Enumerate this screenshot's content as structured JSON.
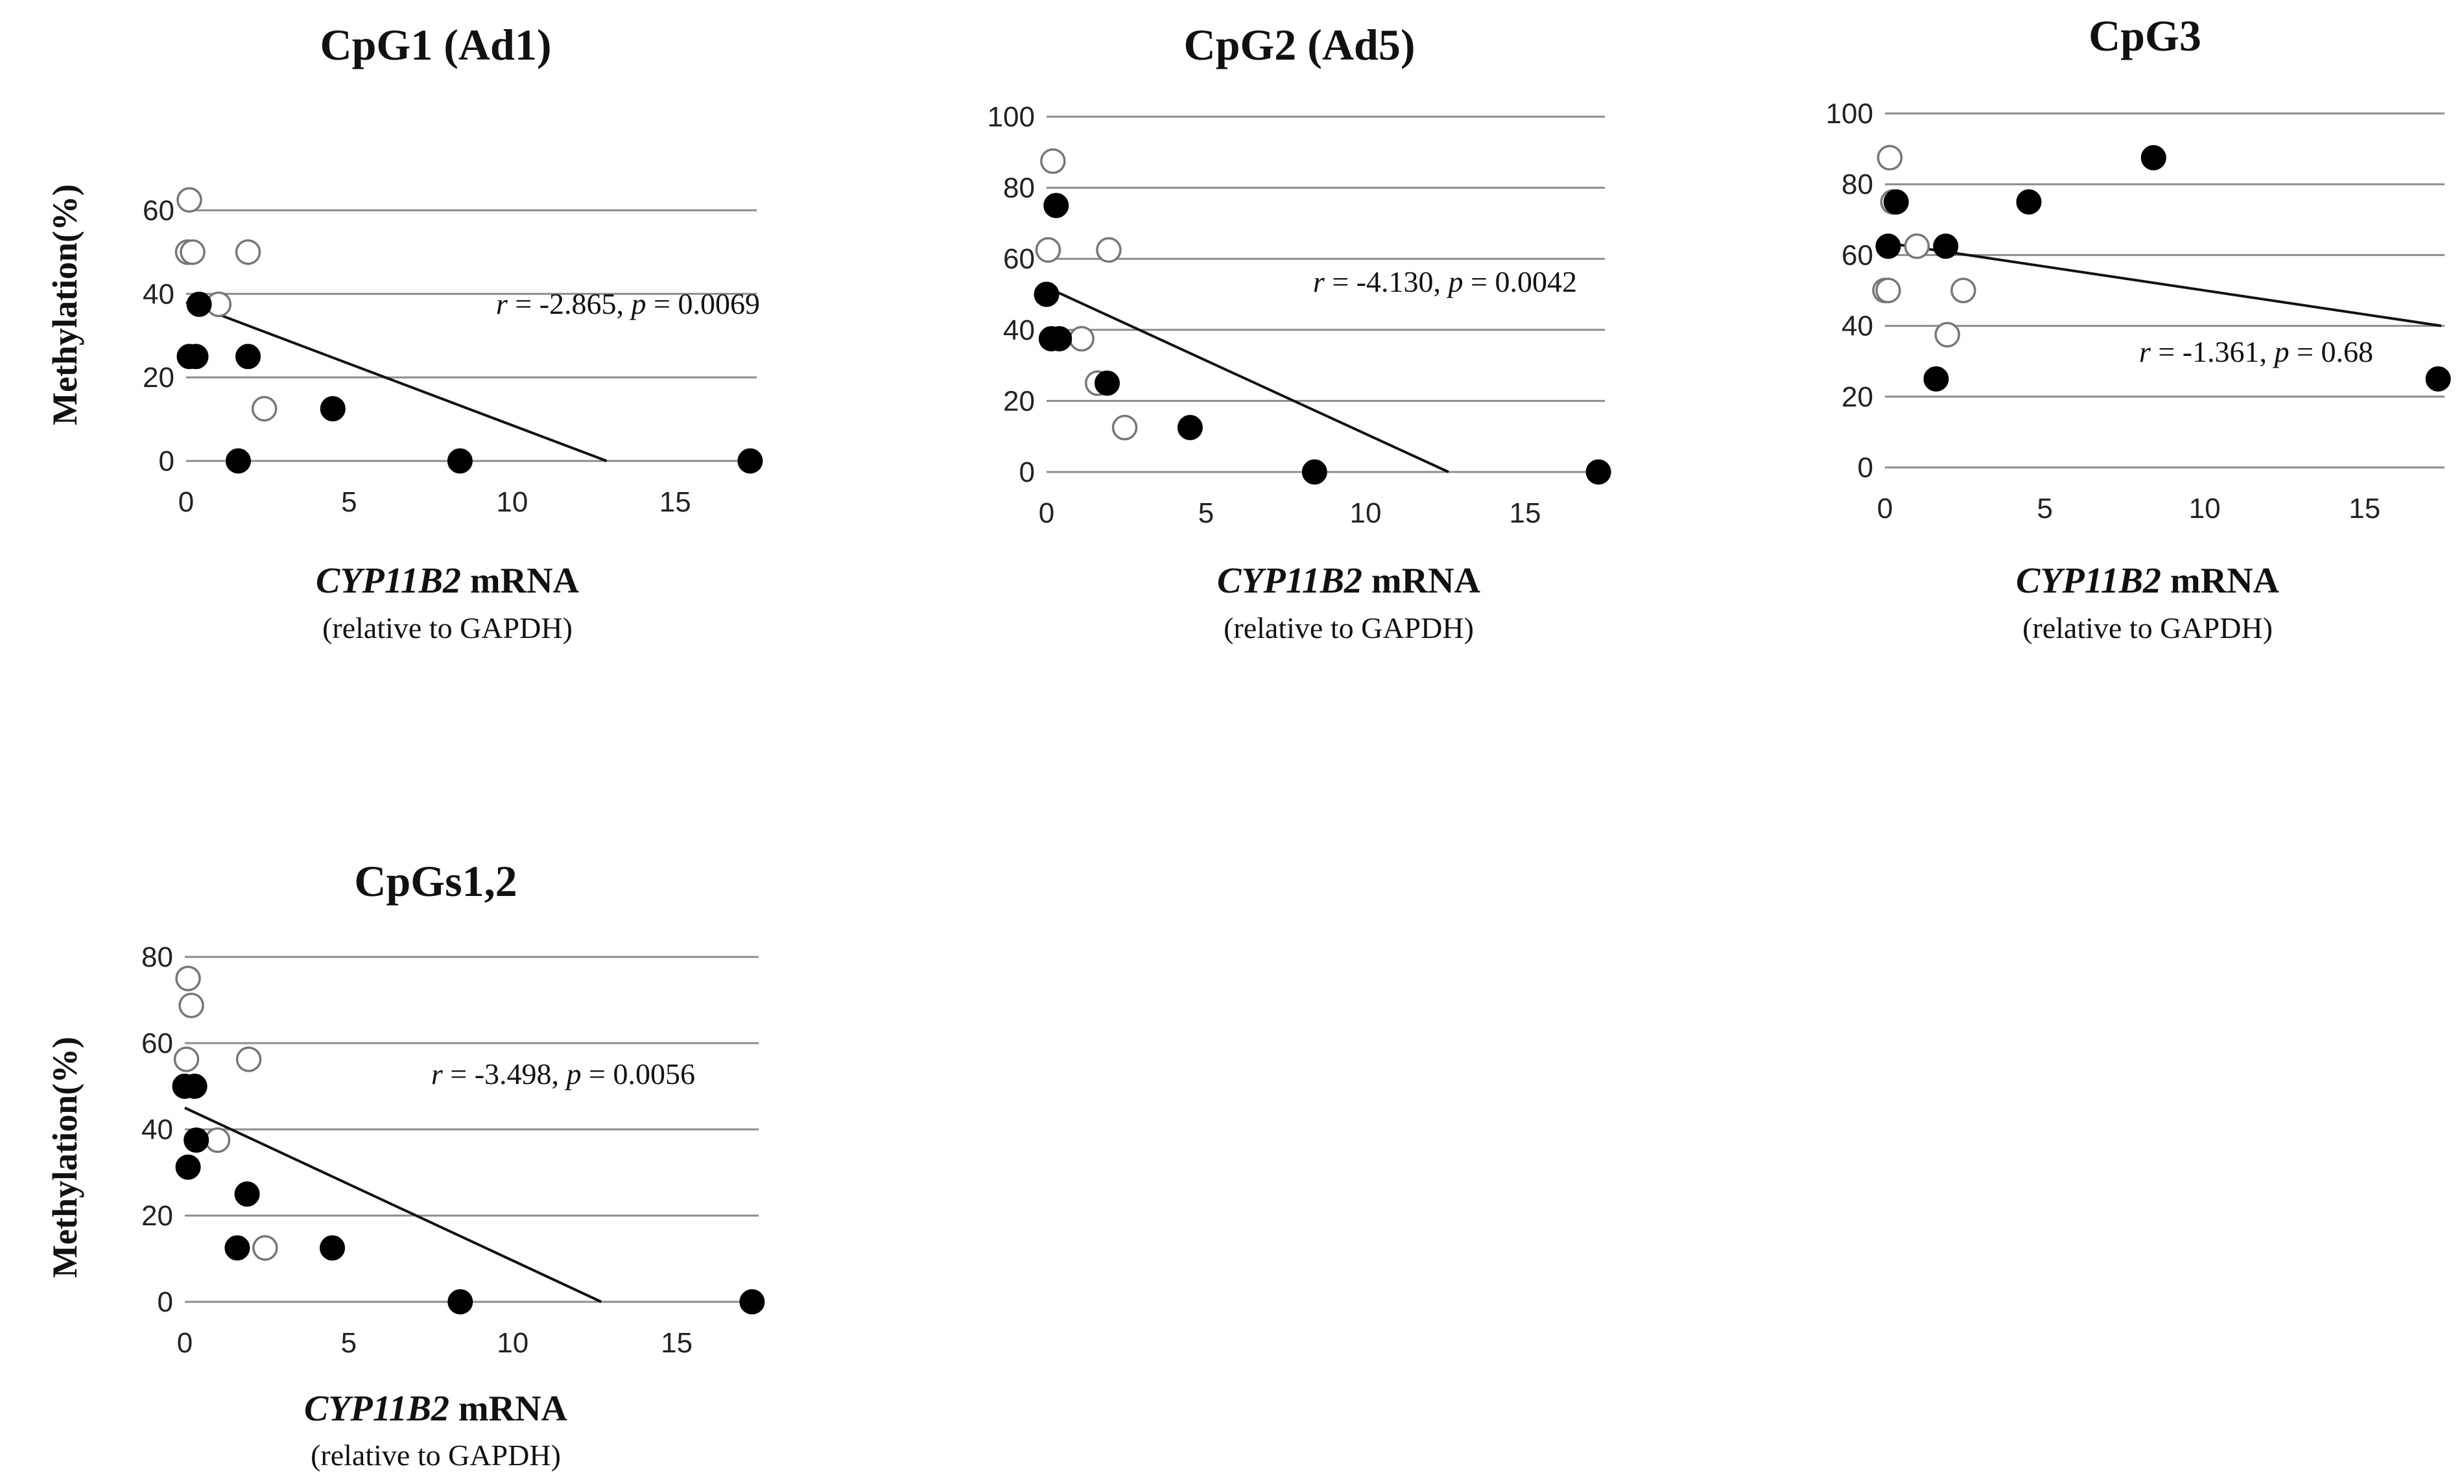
{
  "colors": {
    "filled_marker": "#000000",
    "open_marker": "#ffffff",
    "open_marker_edge": "#777777",
    "gridline": "#8c8c8c",
    "regression_line": "#111111"
  },
  "chart_data": [
    {
      "type": "scatter",
      "title": "CpG1 (Ad1)",
      "ylabel": "Methylation(%)",
      "xlabel_italic": "CYP11B2",
      "xlabel_rest": " mRNA",
      "xlabel_sub": "(relative to GAPDH)",
      "stat": {
        "r_label": "r",
        "r_text": " = -2.865, ",
        "p_label": "p",
        "p_text": " = 0.0069"
      },
      "grid": true,
      "xlim": [
        0,
        17.5
      ],
      "ylim": [
        0,
        70
      ],
      "xticks": [
        0,
        5,
        10,
        15
      ],
      "yticks": [
        0,
        20,
        40,
        60
      ],
      "fit_line": {
        "x": [
          0,
          12.9
        ],
        "y": [
          38,
          0
        ]
      },
      "series": [
        {
          "marker": "filled",
          "points": [
            [
              0.1,
              25
            ],
            [
              0.3,
              25
            ],
            [
              0.4,
              37.5
            ],
            [
              1.6,
              0
            ],
            [
              1.9,
              25
            ],
            [
              4.5,
              12.5
            ],
            [
              8.4,
              0
            ],
            [
              17.3,
              0
            ]
          ]
        },
        {
          "marker": "open",
          "points": [
            [
              0.05,
              50
            ],
            [
              0.1,
              62.5
            ],
            [
              0.2,
              50
            ],
            [
              1.0,
              37.5
            ],
            [
              1.9,
              50
            ],
            [
              2.4,
              12.5
            ]
          ]
        }
      ]
    },
    {
      "type": "scatter",
      "title": "CpG2 (Ad5)",
      "ylabel": "",
      "xlabel_italic": "CYP11B2",
      "xlabel_rest": " mRNA",
      "xlabel_sub": "(relative to GAPDH)",
      "stat": {
        "r_label": "r",
        "r_text": " = -4.130, ",
        "p_label": "p",
        "p_text": " = 0.0042"
      },
      "grid": true,
      "xlim": [
        0,
        17.5
      ],
      "ylim": [
        0,
        100
      ],
      "xticks": [
        0,
        5,
        10,
        15
      ],
      "yticks": [
        0,
        20,
        40,
        60,
        80,
        100
      ],
      "fit_line": {
        "x": [
          0,
          12.6
        ],
        "y": [
          52,
          0
        ]
      },
      "series": [
        {
          "marker": "filled",
          "points": [
            [
              0.0,
              50
            ],
            [
              0.15,
              37.5
            ],
            [
              0.3,
              75
            ],
            [
              0.4,
              37.5
            ],
            [
              1.9,
              25
            ],
            [
              4.5,
              12.5
            ],
            [
              8.4,
              0
            ],
            [
              17.3,
              0
            ]
          ]
        },
        {
          "marker": "open",
          "points": [
            [
              0.05,
              62.5
            ],
            [
              0.2,
              87.5
            ],
            [
              1.1,
              37.5
            ],
            [
              1.6,
              25
            ],
            [
              1.95,
              62.5
            ],
            [
              2.45,
              12.5
            ]
          ]
        }
      ]
    },
    {
      "type": "scatter",
      "title": "CpG3",
      "ylabel": "",
      "xlabel_italic": "CYP11B2",
      "xlabel_rest": " mRNA",
      "xlabel_sub": "(relative to GAPDH)",
      "stat": {
        "r_label": "r",
        "r_text": " = -1.361, ",
        "p_label": "p",
        "p_text": " = 0.68"
      },
      "grid": true,
      "xlim": [
        0,
        17.5
      ],
      "ylim": [
        0,
        100
      ],
      "xticks": [
        0,
        5,
        10,
        15
      ],
      "yticks": [
        0,
        20,
        40,
        60,
        80,
        100
      ],
      "fit_line": {
        "x": [
          0,
          17.4
        ],
        "y": [
          63.5,
          40
        ]
      },
      "series": [
        {
          "marker": "filled",
          "points": [
            [
              0.1,
              62.5
            ],
            [
              0.35,
              75
            ],
            [
              1.6,
              25
            ],
            [
              1.9,
              62.5
            ],
            [
              4.5,
              75
            ],
            [
              8.4,
              87.5
            ],
            [
              17.3,
              25
            ]
          ]
        },
        {
          "marker": "open",
          "points": [
            [
              0.0,
              50
            ],
            [
              0.1,
              50
            ],
            [
              0.15,
              87.5
            ],
            [
              0.25,
              75
            ],
            [
              1.0,
              62.5
            ],
            [
              1.95,
              37.5
            ],
            [
              2.45,
              50
            ]
          ]
        }
      ]
    },
    {
      "type": "scatter",
      "title": "CpGs1,2",
      "ylabel": "Methylation(%)",
      "xlabel_italic": "CYP11B2",
      "xlabel_rest": " mRNA",
      "xlabel_sub": "(relative to GAPDH)",
      "stat": {
        "r_label": "r",
        "r_text": " = -3.498, ",
        "p_label": "p",
        "p_text": " = 0.0056"
      },
      "grid": true,
      "xlim": [
        0,
        17.5
      ],
      "ylim": [
        0,
        80
      ],
      "xticks": [
        0,
        5,
        10,
        15
      ],
      "yticks": [
        0,
        20,
        40,
        60,
        80
      ],
      "fit_line": {
        "x": [
          0,
          12.7
        ],
        "y": [
          45,
          0
        ]
      },
      "series": [
        {
          "marker": "filled",
          "points": [
            [
              0.0,
              50
            ],
            [
              0.1,
              31.25
            ],
            [
              0.3,
              50
            ],
            [
              0.35,
              37.5
            ],
            [
              1.6,
              12.5
            ],
            [
              1.9,
              25
            ],
            [
              4.5,
              12.5
            ],
            [
              8.4,
              0
            ],
            [
              17.3,
              0
            ]
          ]
        },
        {
          "marker": "open",
          "points": [
            [
              0.05,
              56.25
            ],
            [
              0.1,
              75
            ],
            [
              0.2,
              68.75
            ],
            [
              1.0,
              37.5
            ],
            [
              1.95,
              56.25
            ],
            [
              2.45,
              12.5
            ]
          ]
        }
      ]
    }
  ]
}
